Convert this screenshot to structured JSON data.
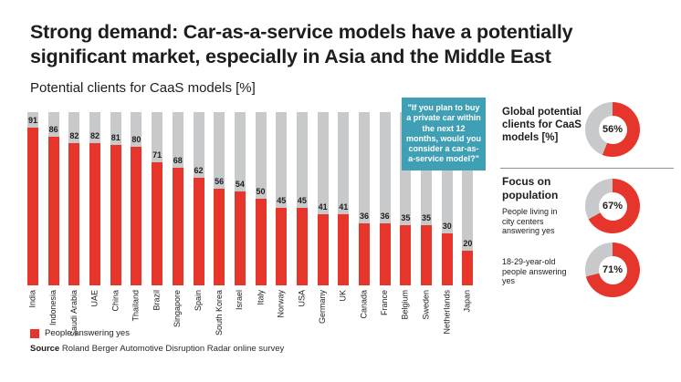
{
  "header": {
    "title": "Strong demand: Car-as-a-service models have a potentially significant market, especially in Asia and the Middle East",
    "subtitle": "Potential clients for CaaS models [%]"
  },
  "callout": {
    "text": "\"If you plan to buy a private car within the next 12 months, would you consider a car-as-a-service model?\""
  },
  "legend": {
    "label": "People answering yes"
  },
  "source": {
    "label": "Source",
    "text": "Roland Berger Automotive Disruption Radar online survey"
  },
  "colors": {
    "red": "#e6362c",
    "gray": "#c8c9cb",
    "teal": "#3fa0b5"
  },
  "chart_data": [
    {
      "type": "bar",
      "title": "Potential clients for CaaS models [%]",
      "categories": [
        "India",
        "Indonesia",
        "Saudi Arabia",
        "UAE",
        "China",
        "Thailand",
        "Brazil",
        "Singapore",
        "Spain",
        "South Korea",
        "Israel",
        "Italy",
        "Norway",
        "USA",
        "Germany",
        "UK",
        "Canada",
        "France",
        "Belgium",
        "Sweden",
        "Netherlands",
        "Japan"
      ],
      "values": [
        91,
        86,
        82,
        82,
        81,
        80,
        71,
        68,
        62,
        56,
        54,
        50,
        45,
        45,
        41,
        41,
        36,
        36,
        35,
        35,
        30,
        20
      ],
      "ylim": [
        0,
        100
      ],
      "grid": false,
      "series_label": "People answering yes",
      "note": "gray background bar represents 100%"
    },
    {
      "type": "pie",
      "label": "Global potential clients for CaaS models [%]",
      "value": 56,
      "display": "56%"
    },
    {
      "type": "pie",
      "label": "People living in city centers answering yes",
      "value": 67,
      "display": "67%"
    },
    {
      "type": "pie",
      "label": "18-29-year-old people answering yes",
      "value": 71,
      "display": "71%"
    }
  ],
  "side_panel": {
    "global_label": "Global potential clients for CaaS models [%]",
    "global_value": "56%",
    "focus_heading": "Focus on population",
    "city_label": "People living in city centers answering yes",
    "city_value": "67%",
    "youth_label": "18-29-year-old people answering yes",
    "youth_value": "71%"
  }
}
